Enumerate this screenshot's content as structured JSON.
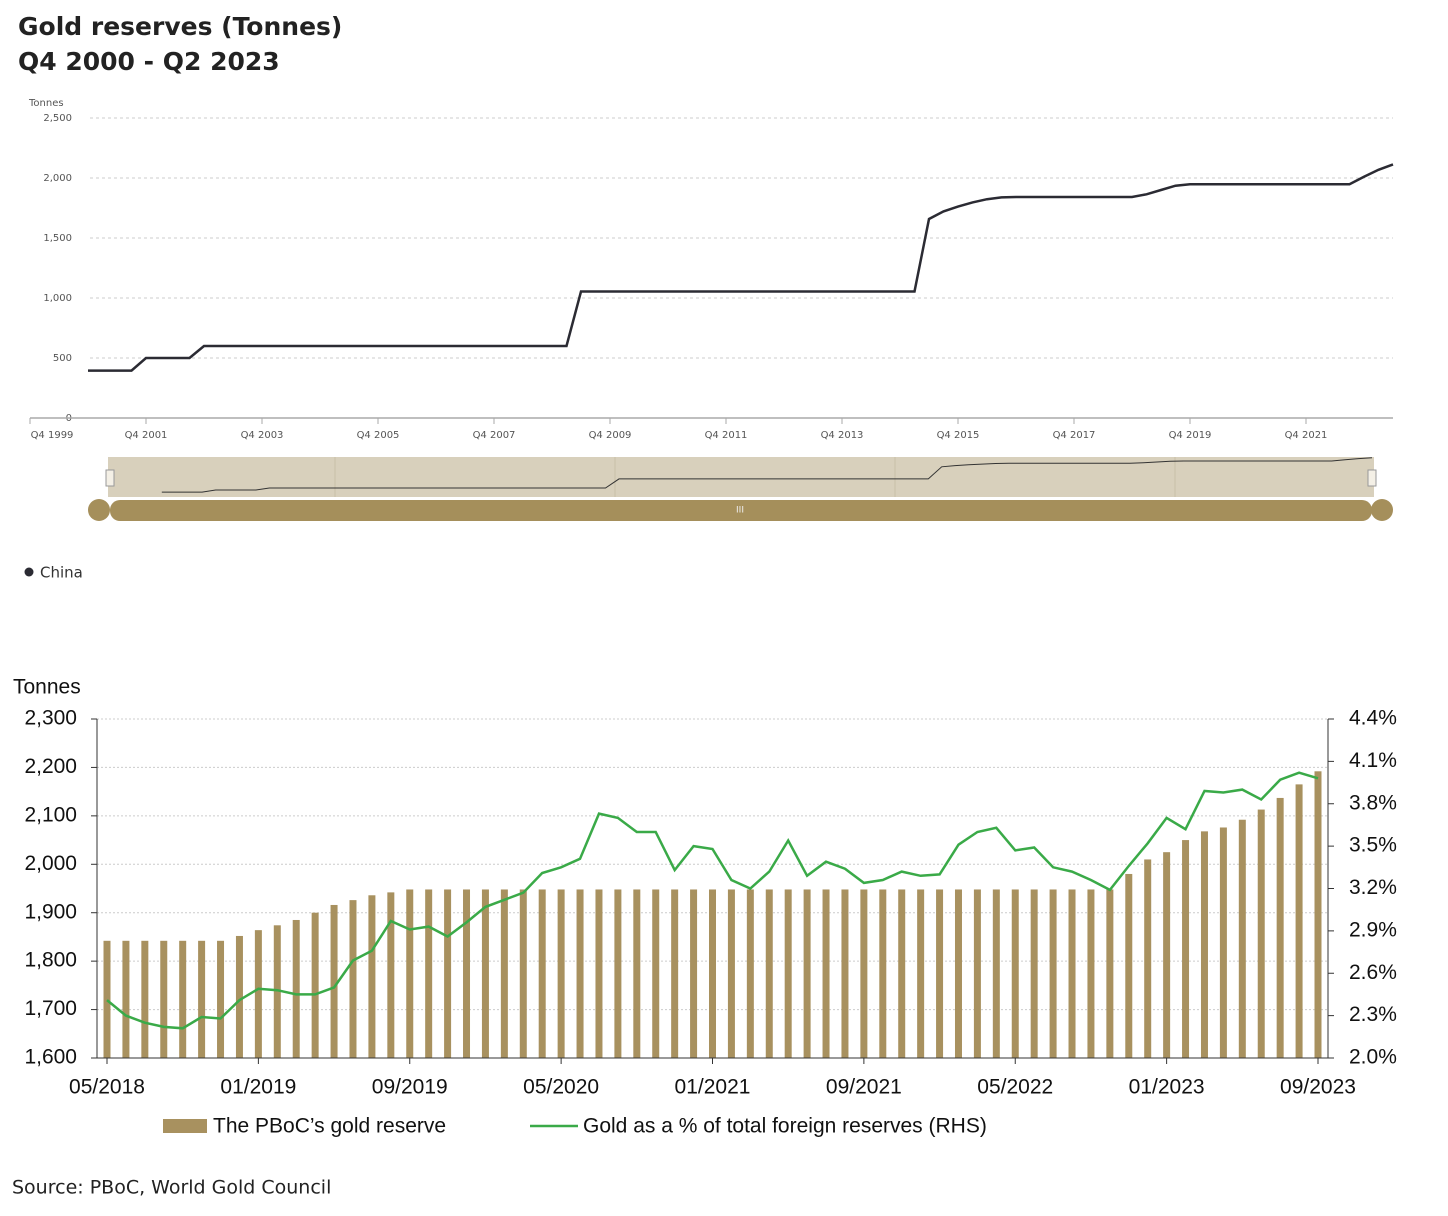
{
  "chart_data": [
    {
      "type": "line",
      "title": "Gold reserves (Tonnes)",
      "subtitle": "Q4 2000 - Q2 2023",
      "y_label": "Tonnes",
      "x": [
        2000.75,
        2001.5,
        2001.75,
        2002.5,
        2002.75,
        2009,
        2009.25,
        2015,
        2015.25,
        2015.5,
        2015.75,
        2016,
        2016.25,
        2016.5,
        2016.75,
        2018.75,
        2019,
        2019.25,
        2019.5,
        2019.75,
        2022.5,
        2022.75,
        2023,
        2023.25
      ],
      "series": [
        {
          "name": "China",
          "color": "#2b2b33",
          "values": [
            395,
            395,
            500,
            500,
            600,
            600,
            1054,
            1054,
            1658,
            1722,
            1762,
            1797,
            1823,
            1838,
            1842,
            1842,
            1864,
            1900,
            1936,
            1948,
            1948,
            2010,
            2068,
            2113
          ]
        }
      ],
      "xlim": [
        1999.75,
        2023.25
      ],
      "xticks": [
        {
          "value": 1999.75,
          "label": "Q4 1999"
        },
        {
          "value": 2001.75,
          "label": "Q4 2001"
        },
        {
          "value": 2003.75,
          "label": "Q4 2003"
        },
        {
          "value": 2005.75,
          "label": "Q4 2005"
        },
        {
          "value": 2007.75,
          "label": "Q4 2007"
        },
        {
          "value": 2009.75,
          "label": "Q4 2009"
        },
        {
          "value": 2011.75,
          "label": "Q4 2011"
        },
        {
          "value": 2013.75,
          "label": "Q4 2013"
        },
        {
          "value": 2015.75,
          "label": "Q4 2015"
        },
        {
          "value": 2017.75,
          "label": "Q4 2017"
        },
        {
          "value": 2019.75,
          "label": "Q4 2019"
        },
        {
          "value": 2021.75,
          "label": "Q4 2021"
        }
      ],
      "ylim": [
        0,
        2500
      ],
      "yticks": [
        0,
        500,
        {
          "value": 1000,
          "label": "1,000"
        },
        {
          "value": 1500,
          "label": "1,500"
        },
        {
          "value": 2000,
          "label": "2,000"
        },
        {
          "value": 2500,
          "label": "2,500"
        }
      ],
      "grid": true,
      "legend": "bottom-left"
    },
    {
      "type": "bar",
      "y_label": "Tonnes",
      "categories": [
        "05/2018",
        null,
        null,
        null,
        null,
        null,
        null,
        null,
        "01/2019",
        null,
        null,
        null,
        null,
        null,
        null,
        null,
        "09/2019",
        null,
        null,
        null,
        null,
        null,
        null,
        null,
        "05/2020",
        null,
        null,
        null,
        null,
        null,
        null,
        null,
        "01/2021",
        null,
        null,
        null,
        null,
        null,
        null,
        null,
        "09/2021",
        null,
        null,
        null,
        null,
        null,
        null,
        null,
        "05/2022",
        null,
        null,
        null,
        null,
        null,
        null,
        null,
        "01/2023",
        null,
        null,
        null,
        null,
        null,
        null,
        null,
        "09/2023"
      ],
      "series": [
        {
          "name": "The PBoC’s gold reserve",
          "type": "bar",
          "color": "#a8915f",
          "values": [
            1842,
            1842,
            1842,
            1842,
            1842,
            1842,
            1842,
            1852,
            1864,
            1874,
            1885,
            1900,
            1916,
            1926,
            1936,
            1942,
            1948,
            1948,
            1948,
            1948,
            1948,
            1948,
            1948,
            1948,
            1948,
            1948,
            1948,
            1948,
            1948,
            1948,
            1948,
            1948,
            1948,
            1948,
            1948,
            1948,
            1948,
            1948,
            1948,
            1948,
            1948,
            1948,
            1948,
            1948,
            1948,
            1948,
            1948,
            1948,
            1948,
            1948,
            1948,
            1948,
            1948,
            1948,
            1980,
            2010,
            2025,
            2050,
            2068,
            2076,
            2092,
            2113,
            2137,
            2165,
            2192
          ]
        },
        {
          "name": "Gold as a % of total foreign reserves (RHS)",
          "type": "line",
          "axis": "y2",
          "color": "#3aaa48",
          "values": [
            2.41,
            2.3,
            2.25,
            2.22,
            2.21,
            2.29,
            2.28,
            2.41,
            2.49,
            2.48,
            2.45,
            2.45,
            2.5,
            2.69,
            2.76,
            2.97,
            2.91,
            2.93,
            2.86,
            2.96,
            3.07,
            3.12,
            3.17,
            3.31,
            3.35,
            3.41,
            3.73,
            3.7,
            3.6,
            3.6,
            3.33,
            3.5,
            3.48,
            3.26,
            3.2,
            3.32,
            3.54,
            3.29,
            3.39,
            3.34,
            3.24,
            3.26,
            3.32,
            3.29,
            3.3,
            3.51,
            3.6,
            3.63,
            3.47,
            3.49,
            3.35,
            3.32,
            3.26,
            3.19,
            3.36,
            3.52,
            3.7,
            3.62,
            3.89,
            3.88,
            3.9,
            3.83,
            3.97,
            4.02,
            3.98
          ]
        }
      ],
      "ylim": [
        1600,
        2300
      ],
      "yticks": [
        {
          "value": 1600,
          "label": "1,600"
        },
        {
          "value": 1700,
          "label": "1,700"
        },
        {
          "value": 1800,
          "label": "1,800"
        },
        {
          "value": 1900,
          "label": "1,900"
        },
        {
          "value": 2000,
          "label": "2,000"
        },
        {
          "value": 2100,
          "label": "2,100"
        },
        {
          "value": 2200,
          "label": "2,200"
        },
        {
          "value": 2300,
          "label": "2,300"
        }
      ],
      "y2lim": [
        2.0,
        4.4
      ],
      "y2ticks": [
        {
          "value": 2.0,
          "label": "2.0%"
        },
        {
          "value": 2.3,
          "label": "2.3%"
        },
        {
          "value": 2.6,
          "label": "2.6%"
        },
        {
          "value": 2.9,
          "label": "2.9%"
        },
        {
          "value": 3.2,
          "label": "3.2%"
        },
        {
          "value": 3.5,
          "label": "3.5%"
        },
        {
          "value": 3.8,
          "label": "3.8%"
        },
        {
          "value": 4.1,
          "label": "4.1%"
        },
        {
          "value": 4.4,
          "label": "4.4%"
        }
      ],
      "grid": true,
      "legend": "bottom"
    }
  ],
  "source": "Source: PBoC, World Gold Council"
}
